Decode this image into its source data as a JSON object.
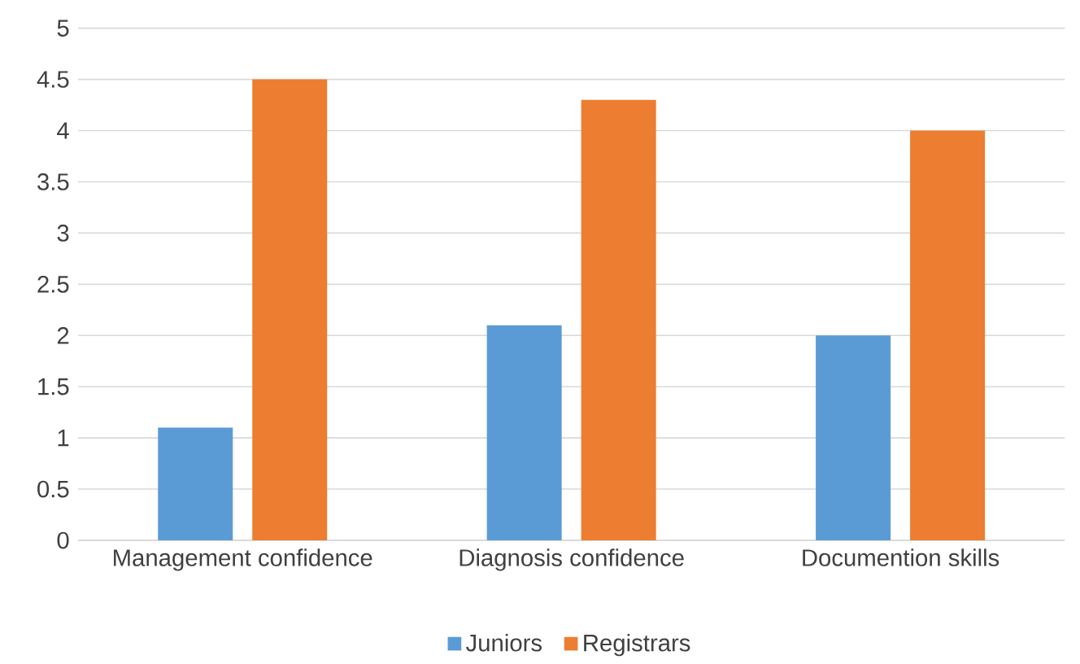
{
  "chart_data": {
    "type": "bar",
    "categories": [
      "Management confidence",
      "Diagnosis confidence",
      "Documention skills"
    ],
    "series": [
      {
        "name": "Juniors",
        "color": "#5b9bd5",
        "values": [
          1.1,
          2.1,
          2.0
        ]
      },
      {
        "name": "Registrars",
        "color": "#ed7d31",
        "values": [
          4.5,
          4.3,
          4.0
        ]
      }
    ],
    "ylim": [
      0,
      5
    ],
    "yticks": [
      0,
      0.5,
      1,
      1.5,
      2,
      2.5,
      3,
      3.5,
      4,
      4.5,
      5
    ],
    "grid": "y",
    "legend": "bottom"
  }
}
